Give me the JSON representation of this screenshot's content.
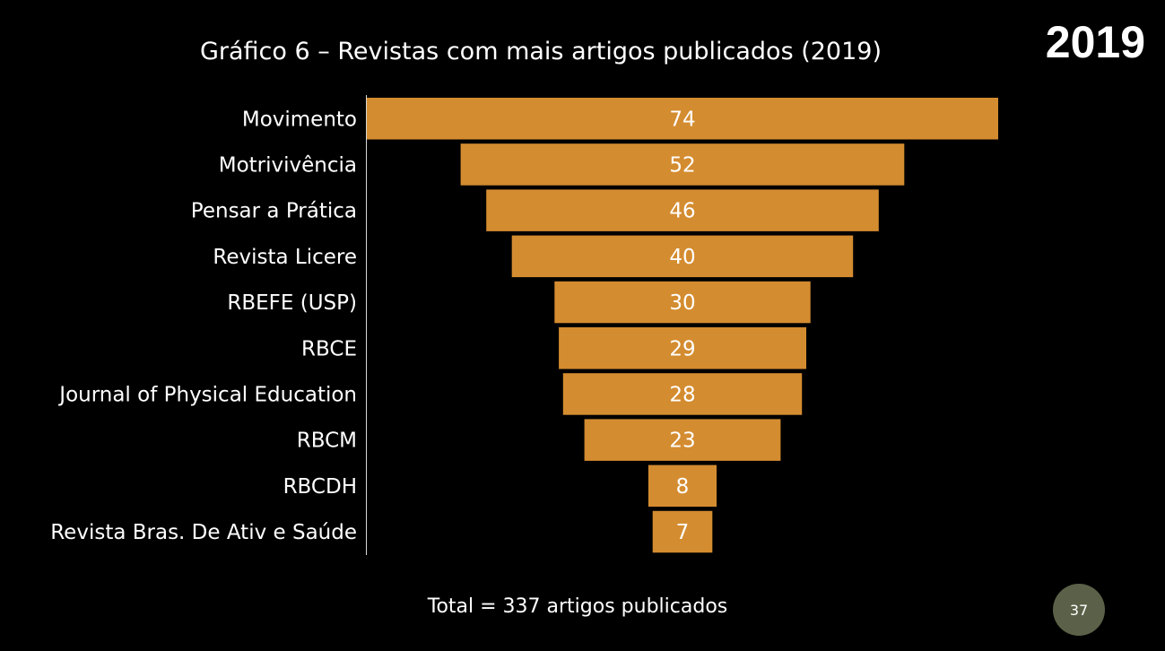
{
  "year_badge": "2019",
  "chart_data": {
    "type": "bar",
    "orientation": "horizontal-funnel",
    "title": "Gráfico 6 – Revistas com mais artigos publicados (2019)",
    "categories": [
      "Movimento",
      "Motrivivência",
      "Pensar a Prática",
      "Revista Licere",
      "RBEFE (USP)",
      "RBCE",
      "Journal of Physical Education",
      "RBCM",
      "RBCDH",
      "Revista Bras. De Ativ e Saúde"
    ],
    "values": [
      74,
      52,
      46,
      40,
      30,
      29,
      28,
      23,
      8,
      7
    ],
    "xlabel": "",
    "ylabel": "",
    "xlim": [
      0,
      74
    ],
    "grid": false,
    "legend": "none",
    "bar_color": "#d48c30"
  },
  "total_note": "Total = 337 artigos publicados",
  "page_number": "37"
}
